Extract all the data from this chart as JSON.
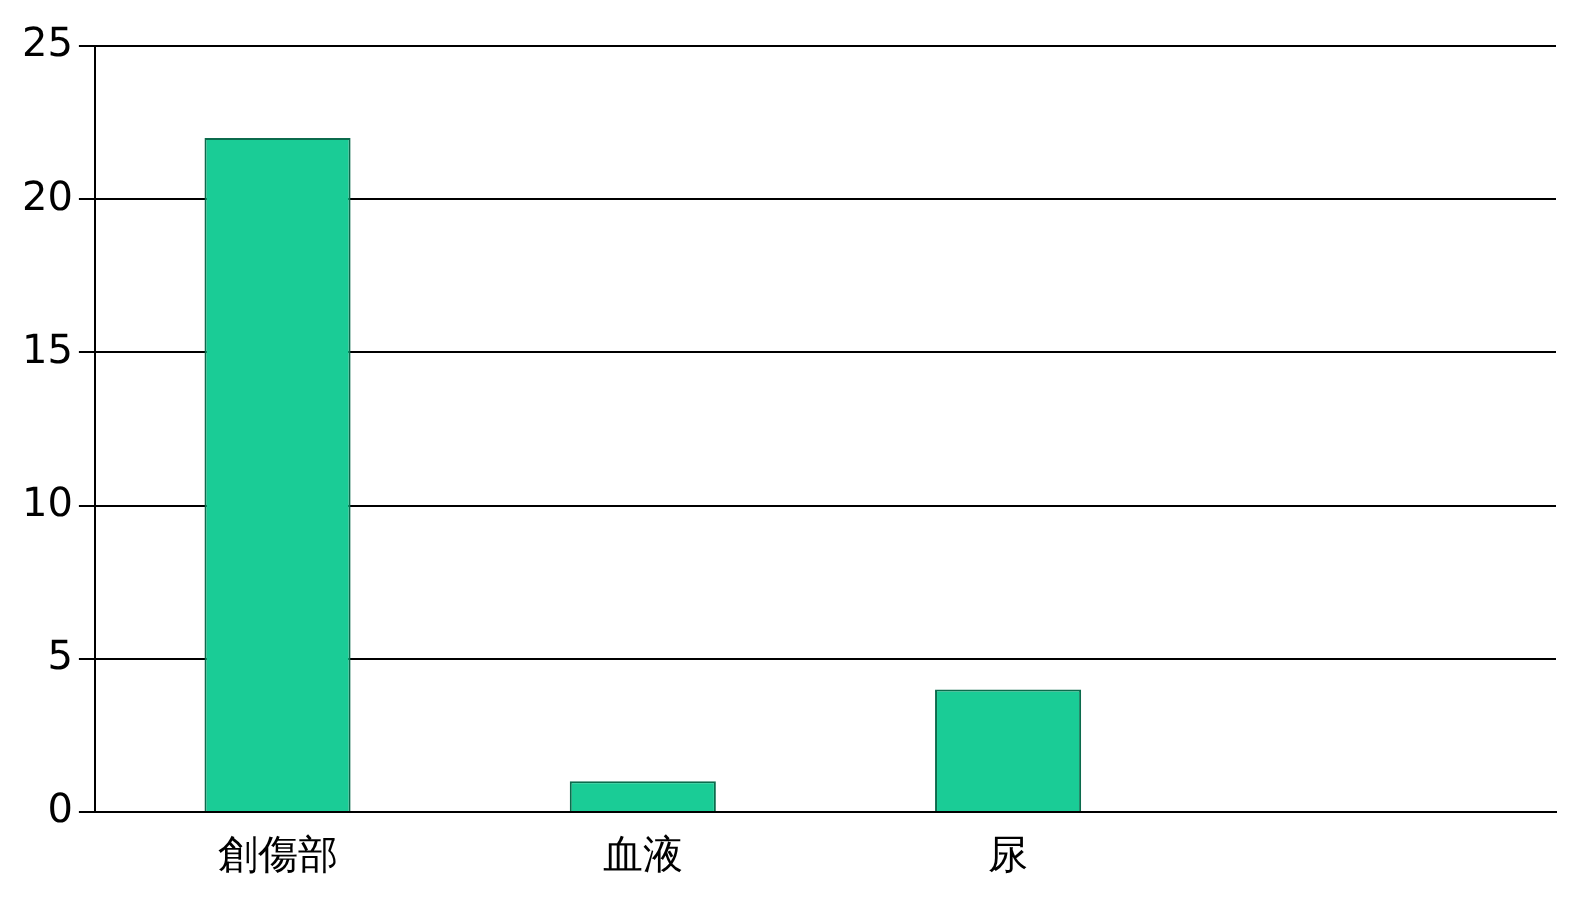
{
  "chart_data": {
    "type": "bar",
    "categories": [
      "創傷部",
      "血液",
      "尿",
      null
    ],
    "values": [
      22,
      1,
      4,
      null
    ],
    "color": "#1acc96",
    "ylim": [
      0,
      25
    ],
    "yticks": [
      0,
      5,
      10,
      15,
      20,
      25
    ],
    "grid": "y",
    "legend": false
  }
}
